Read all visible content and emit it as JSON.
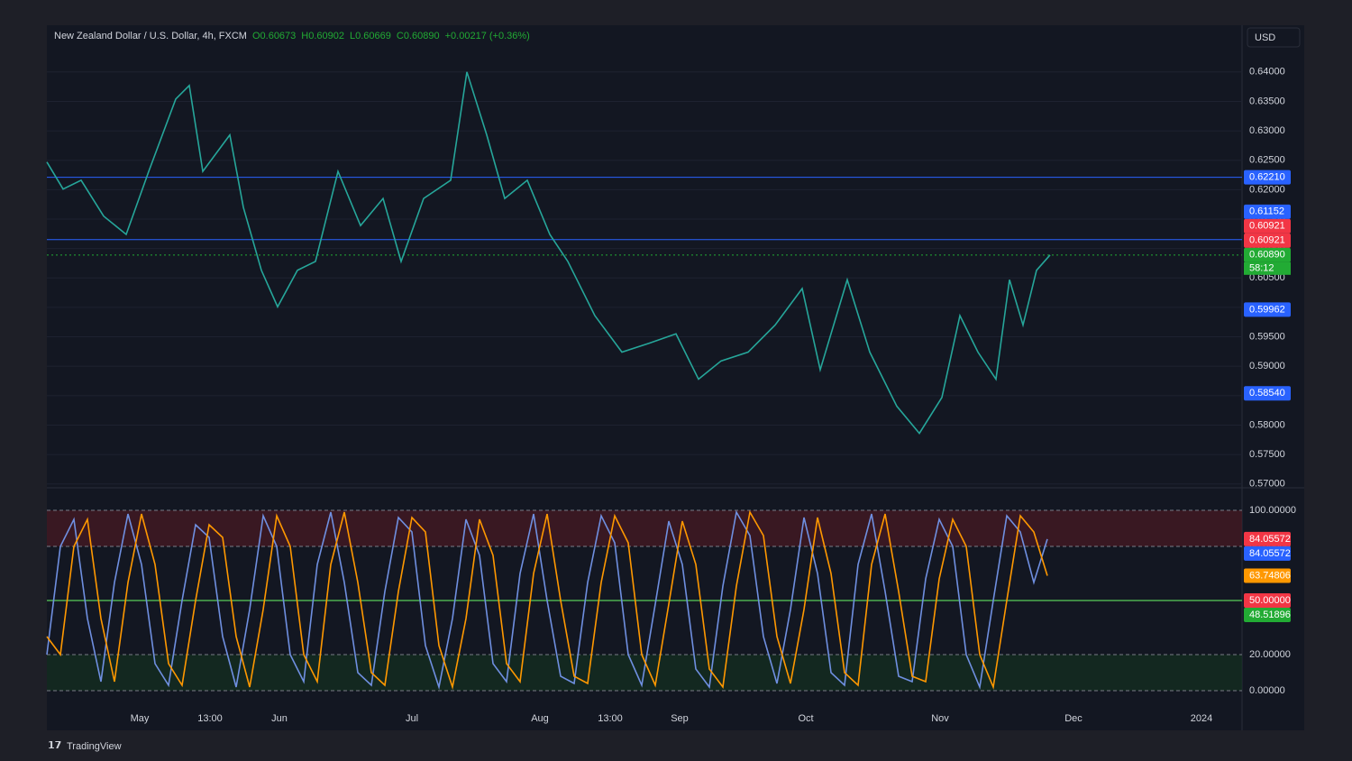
{
  "header": {
    "symbol": "New Zealand Dollar / U.S. Dollar, 4h, FXCM",
    "ohlc": [
      "O0.60673",
      "H0.60902",
      "L0.60669",
      "C0.60890",
      "+0.00217 (+0.36%)"
    ]
  },
  "currency_button": "USD",
  "logo": "TradingView",
  "chart_data": [
    {
      "type": "line",
      "x": [
        0,
        1.8,
        3.8,
        6.3,
        8.8,
        11.3,
        14.3,
        15.8,
        17.3,
        20.3,
        21.8,
        23.8,
        25.6,
        27.8,
        29.8,
        32.3,
        34.8,
        37.3,
        39.3,
        41.8,
        44.8,
        46.6,
        48.8,
        50.8,
        53.3,
        55.8,
        57.8,
        60.8,
        63.8,
        66.8,
        69.8,
        72.3,
        74.8,
        77.8,
        80.8,
        83.8,
        85.8,
        88.8,
        91.3,
        94.3,
        96.8,
        99.3,
        101.3,
        103.3,
        105.3,
        106.8,
        108.3,
        109.8,
        111.3
      ],
      "series": [
        {
          "color": "#26a69a",
          "values": [
            0.6247,
            0.6201,
            0.6216,
            0.6155,
            0.6124,
            0.6231,
            0.6354,
            0.6377,
            0.6231,
            0.6293,
            0.617,
            0.6063,
            0.6001,
            0.6063,
            0.6078,
            0.6231,
            0.6139,
            0.6185,
            0.6078,
            0.6185,
            0.6216,
            0.64,
            0.6293,
            0.6185,
            0.6216,
            0.6124,
            0.6078,
            0.5986,
            0.5924,
            0.5939,
            0.5955,
            0.5878,
            0.5909,
            0.5924,
            0.597,
            0.6032,
            0.5894,
            0.6047,
            0.5924,
            0.5832,
            0.5786,
            0.5847,
            0.5986,
            0.5924,
            0.5878,
            0.6047,
            0.597,
            0.6063,
            0.6089
          ]
        }
      ],
      "xlim": [
        0,
        132.6
      ],
      "ylim": [
        0.5695,
        0.6438
      ],
      "yticks": [
        {
          "value": 0.57,
          "label": "0.57000"
        },
        {
          "value": 0.575,
          "label": "0.57500"
        },
        {
          "value": 0.58,
          "label": "0.58000"
        },
        {
          "value": 0.585,
          "label": "0.58500"
        },
        {
          "value": 0.59,
          "label": "0.59000"
        },
        {
          "value": 0.595,
          "label": "0.59500"
        },
        {
          "value": 0.6,
          "label": "0.60000"
        },
        {
          "value": 0.605,
          "label": "0.60500"
        },
        {
          "value": 0.61,
          "label": "0.61000"
        },
        {
          "value": 0.615,
          "label": "0.61500"
        },
        {
          "value": 0.62,
          "label": "0.62000"
        },
        {
          "value": 0.625,
          "label": "0.62500"
        },
        {
          "value": 0.63,
          "label": "0.63000"
        },
        {
          "value": 0.635,
          "label": "0.63500"
        },
        {
          "value": 0.64,
          "label": "0.64000"
        }
      ],
      "grid": true,
      "price_labels": [
        {
          "value": 0.6221,
          "label": "0.62210",
          "color": "#2962ff",
          "line": "solid"
        },
        {
          "value": 0.61152,
          "label": "0.61152",
          "color": "#2962ff",
          "line": "solid"
        },
        {
          "value": 0.60921,
          "label": "0.60921",
          "color": "#f23645"
        },
        {
          "value": 0.60921,
          "label": "0.60921",
          "color": "#f23645"
        },
        {
          "value": 0.6089,
          "label": "0.60890",
          "color": "#22ab34",
          "line": "dotted"
        },
        {
          "value": 0.59962,
          "label": "0.59962",
          "color": "#2962ff"
        },
        {
          "value": 0.5854,
          "label": "0.58540",
          "color": "#2962ff"
        }
      ],
      "countdown": "58:12"
    },
    {
      "type": "line",
      "x": [
        0,
        1.5,
        3,
        4.5,
        6,
        7.5,
        9,
        10.5,
        12,
        13.5,
        15,
        16.5,
        18,
        19.5,
        21,
        22.5,
        24,
        25.5,
        27,
        28.5,
        30,
        31.5,
        33,
        34.5,
        36,
        37.5,
        39,
        40.5,
        42,
        43.5,
        45,
        46.5,
        48,
        49.5,
        51,
        52.5,
        54,
        55.5,
        57,
        58.5,
        60,
        61.5,
        63,
        64.5,
        66,
        67.5,
        69,
        70.5,
        72,
        73.5,
        75,
        76.5,
        78,
        79.5,
        81,
        82.5,
        84,
        85.5,
        87,
        88.5,
        90,
        91.5,
        93,
        94.5,
        96,
        97.5,
        99,
        100.5,
        102,
        103.5,
        105,
        106.5,
        108,
        109.5,
        111
      ],
      "series": [
        {
          "color": "#6f8fe0",
          "values": [
            20,
            80,
            95,
            40,
            5,
            60,
            98,
            70,
            15,
            3,
            50,
            92,
            85,
            30,
            2,
            45,
            97,
            80,
            20,
            5,
            70,
            99,
            60,
            10,
            3,
            55,
            96,
            88,
            25,
            2,
            40,
            95,
            75,
            15,
            5,
            65,
            98,
            50,
            8,
            4,
            60,
            97,
            82,
            20,
            3,
            48,
            94,
            70,
            12,
            2,
            58,
            99,
            86,
            30,
            4,
            45,
            96,
            65,
            10,
            3,
            70,
            98,
            55,
            8,
            5,
            62,
            95,
            80,
            20,
            2,
            50,
            97,
            88,
            60,
            84.05572
          ]
        },
        {
          "color": "#ff9800",
          "values": [
            30,
            20,
            80,
            95,
            40,
            5,
            60,
            98,
            70,
            15,
            3,
            50,
            92,
            85,
            30,
            2,
            45,
            97,
            80,
            20,
            5,
            70,
            99,
            60,
            10,
            3,
            55,
            96,
            88,
            25,
            2,
            40,
            95,
            75,
            15,
            5,
            65,
            98,
            50,
            8,
            4,
            60,
            97,
            82,
            20,
            3,
            48,
            94,
            70,
            12,
            2,
            58,
            99,
            86,
            30,
            4,
            45,
            96,
            65,
            10,
            3,
            70,
            98,
            55,
            8,
            5,
            62,
            95,
            80,
            20,
            2,
            50,
            97,
            88,
            63.74806
          ]
        }
      ],
      "xlim": [
        0,
        132.6
      ],
      "ylim": [
        -8,
        112
      ],
      "yticks": [
        {
          "value": 0,
          "label": "0.00000"
        },
        {
          "value": 20,
          "label": "20.00000"
        },
        {
          "value": 80,
          "label": "80.00000"
        },
        {
          "value": 100,
          "label": "100.00000"
        }
      ],
      "xticks": [
        {
          "value": 10.3,
          "label": "May"
        },
        {
          "value": 18.1,
          "label": "13:00"
        },
        {
          "value": 25.8,
          "label": "Jun"
        },
        {
          "value": 40.5,
          "label": "Jul"
        },
        {
          "value": 54.7,
          "label": "Aug"
        },
        {
          "value": 62.5,
          "label": "13:00"
        },
        {
          "value": 70.2,
          "label": "Sep"
        },
        {
          "value": 84.2,
          "label": "Oct"
        },
        {
          "value": 99.1,
          "label": "Nov"
        },
        {
          "value": 113.9,
          "label": "Dec"
        },
        {
          "value": 128.1,
          "label": "2024"
        }
      ],
      "bands": [
        {
          "from": 80,
          "to": 100,
          "color": "#4a1a22"
        },
        {
          "from": 0,
          "to": 20,
          "color": "#14301f"
        }
      ],
      "midline": {
        "value": 50,
        "color": "#4caf50"
      },
      "price_labels": [
        {
          "value": 84.05572,
          "label": "84.05572",
          "color": "#f23645"
        },
        {
          "value": 84.05572,
          "label": "84.05572",
          "color": "#2962ff"
        },
        {
          "value": 63.74806,
          "label": "63.74806",
          "color": "#ff9800"
        },
        {
          "value": 50,
          "label": "50.00000",
          "color": "#f23645"
        },
        {
          "value": 48.51896,
          "label": "48.51896",
          "color": "#22ab34"
        }
      ]
    }
  ]
}
